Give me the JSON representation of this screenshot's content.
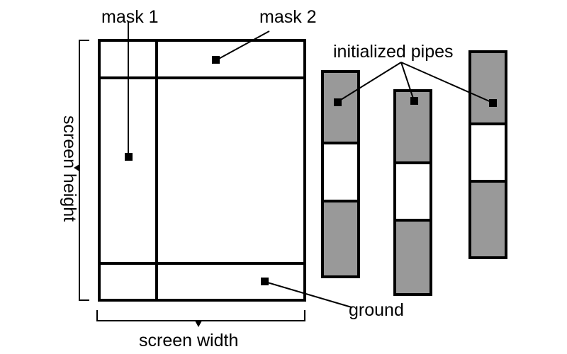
{
  "labels": {
    "mask1": "mask 1",
    "mask2": "mask 2",
    "pipes": "initialized pipes",
    "ground": "ground",
    "screen_width": "screen width",
    "screen_height": "screen height"
  },
  "colors": {
    "stroke": "#000000",
    "pipe_fill": "#999999",
    "background": "#ffffff"
  },
  "pipe_count": 3
}
